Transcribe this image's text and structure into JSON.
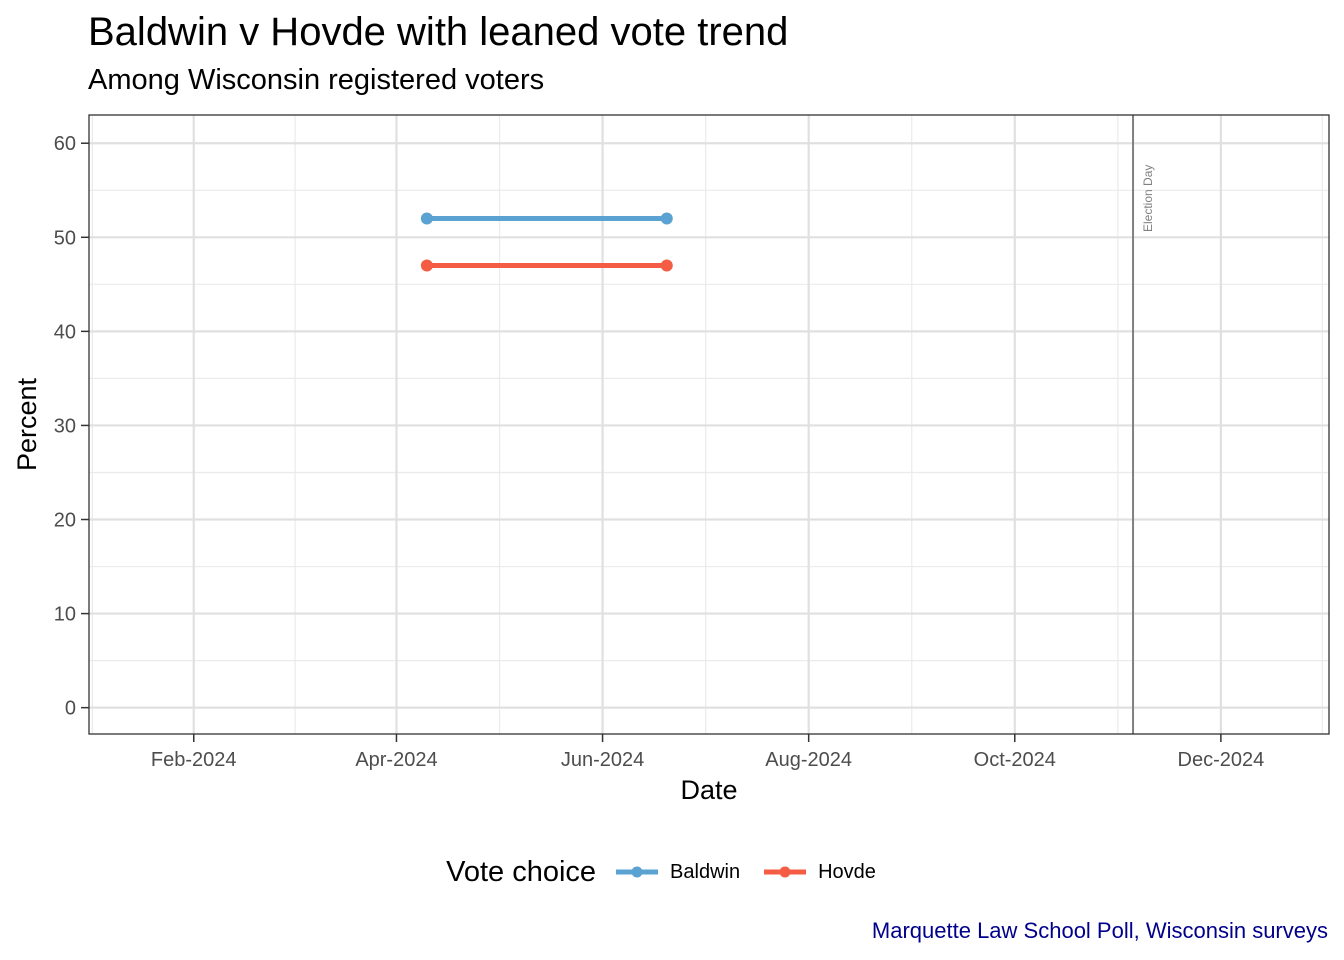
{
  "chart_data": {
    "type": "line",
    "title": "Baldwin v Hovde with leaned vote trend",
    "subtitle": "Among Wisconsin registered voters",
    "xlabel": "Date",
    "ylabel": "Percent",
    "x_tick_labels": [
      "Feb-2024",
      "Apr-2024",
      "Jun-2024",
      "Aug-2024",
      "Oct-2024",
      "Dec-2024"
    ],
    "x_ticks": [
      "2024-02-01",
      "2024-04-01",
      "2024-06-01",
      "2024-08-01",
      "2024-10-01",
      "2024-12-01"
    ],
    "xlim": [
      "2024-01-01",
      "2025-01-02"
    ],
    "y_ticks": [
      0,
      10,
      20,
      30,
      40,
      50,
      60
    ],
    "ylim": [
      -2.8,
      63
    ],
    "grid": true,
    "series": [
      {
        "name": "Baldwin",
        "color": "#5aa2d2",
        "points": [
          {
            "x": "2024-04-10",
            "y": 52
          },
          {
            "x": "2024-06-20",
            "y": 52
          }
        ]
      },
      {
        "name": "Hovde",
        "color": "#f45d44",
        "points": [
          {
            "x": "2024-04-10",
            "y": 47
          },
          {
            "x": "2024-06-20",
            "y": 47
          }
        ]
      }
    ],
    "annotations": [
      {
        "x": "2024-11-05",
        "label": "Election Day",
        "color": "#808080"
      }
    ],
    "legend": {
      "title": "Vote choice",
      "position": "bottom"
    },
    "caption": "Marquette Law School Poll, Wisconsin surveys",
    "caption_color": "#00008b"
  }
}
